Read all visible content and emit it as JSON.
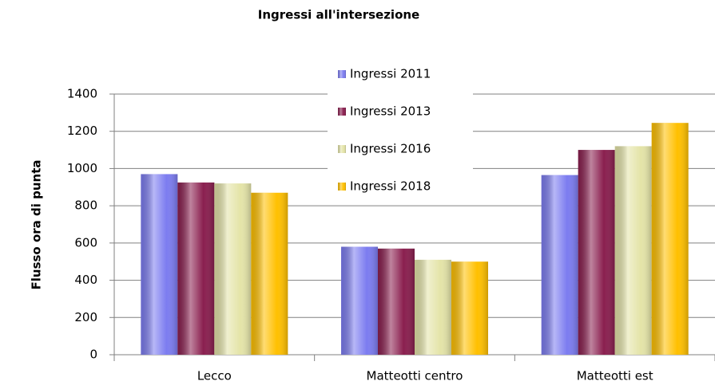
{
  "chart_data": {
    "type": "bar",
    "title": "Ingressi all'intersezione",
    "y_label": "Flusso ora di punta",
    "categories": [
      "Lecco",
      "Matteotti centro",
      "Matteotti est"
    ],
    "series": [
      {
        "name": "Ingressi 2011",
        "color": "#7c7cf0",
        "values": [
          970,
          580,
          965
        ]
      },
      {
        "name": "Ingressi 2013",
        "color": "#8a1f4f",
        "values": [
          925,
          570,
          1100
        ]
      },
      {
        "name": "Ingressi 2016",
        "color": "#e4e4a8",
        "values": [
          920,
          510,
          1120
        ]
      },
      {
        "name": "Ingressi 2018",
        "color": "#ffc000",
        "values": [
          870,
          500,
          1245
        ]
      }
    ],
    "ylim": [
      0,
      1400
    ],
    "yticks": [
      0,
      200,
      400,
      600,
      800,
      1000,
      1200,
      1400
    ],
    "grid": true
  }
}
